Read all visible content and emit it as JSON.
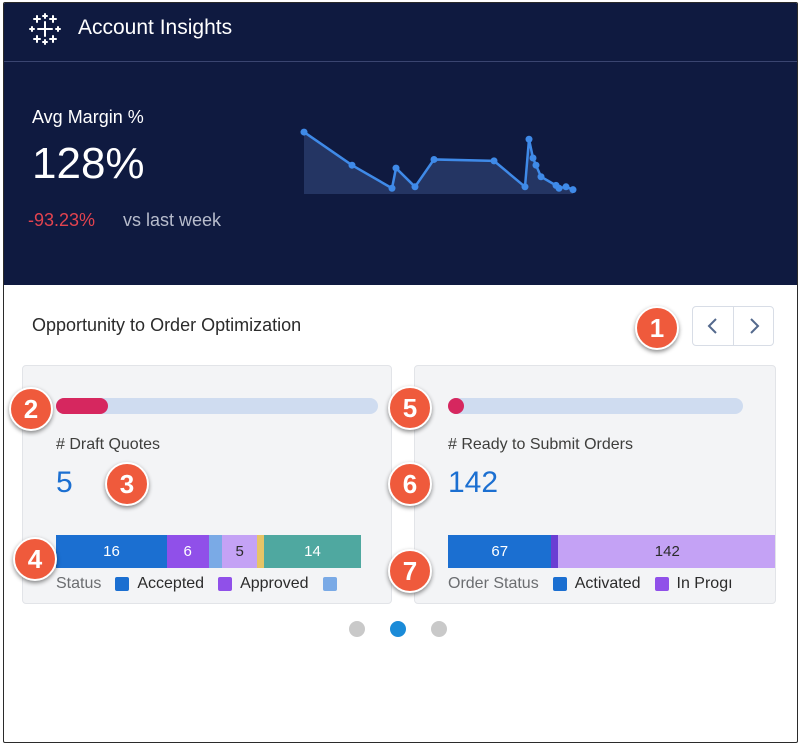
{
  "header": {
    "title": "Account Insights",
    "logo_icon": "tableau-logo-icon"
  },
  "metric": {
    "label": "Avg Margin %",
    "value": "128%",
    "delta": "-93.23%",
    "delta_text": "vs last week"
  },
  "sparkline": {
    "values": [
      86,
      40,
      8,
      36,
      10,
      48,
      46,
      10,
      76,
      50,
      40,
      24,
      12,
      8,
      10,
      6
    ]
  },
  "section": {
    "title": "Opportunity to Order Optimization"
  },
  "nav": {
    "prev_icon": "chevron-left-icon",
    "next_icon": "chevron-right-icon"
  },
  "cards": [
    {
      "progress_fraction": 0.16,
      "label": "# Draft Quotes",
      "value": "5",
      "segments": [
        {
          "label": "16",
          "value": 16,
          "color": "#1b6fd1"
        },
        {
          "label": "6",
          "value": 6,
          "color": "#9050e9"
        },
        {
          "label": "",
          "value": 2,
          "color": "#7aaae6"
        },
        {
          "label": "5",
          "value": 5,
          "color": "#c4a2f5"
        },
        {
          "label": "",
          "value": 1,
          "color": "#e7c466"
        },
        {
          "label": "14",
          "value": 14,
          "color": "#4fa8a0"
        }
      ],
      "legend_title": "Status",
      "legend": [
        {
          "label": "Accepted",
          "color": "#1b6fd1"
        },
        {
          "label": "Approved",
          "color": "#9050e9"
        },
        {
          "label": "",
          "color": "#7aaae6"
        }
      ]
    },
    {
      "progress_fraction": 0.05,
      "label": "# Ready to Submit Orders",
      "value": "142",
      "segments": [
        {
          "label": "67",
          "value": 67,
          "color": "#1b6fd1"
        },
        {
          "label": "",
          "value": 4,
          "color": "#6a3ed3"
        },
        {
          "label": "142",
          "value": 142,
          "color": "#c4a2f5"
        }
      ],
      "legend_title": "Order Status",
      "legend": [
        {
          "label": "Activated",
          "color": "#1b6fd1"
        },
        {
          "label": "In Progı",
          "color": "#9050e9"
        }
      ]
    }
  ],
  "carousel": {
    "dots": 3,
    "active": 1
  },
  "callouts": [
    "1",
    "2",
    "3",
    "4",
    "5",
    "6",
    "7"
  ]
}
